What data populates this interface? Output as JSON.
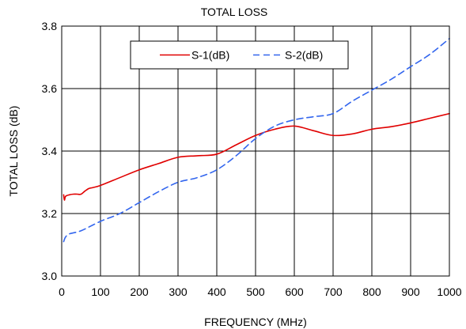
{
  "chart_data": {
    "type": "line",
    "title": "TOTAL LOSS",
    "xlabel": "FREQUENCY (MHz)",
    "ylabel": "TOTAL LOSS (dB)",
    "xlim": [
      0,
      1000
    ],
    "ylim": [
      3.0,
      3.8
    ],
    "x_ticks": [
      0,
      100,
      200,
      300,
      400,
      500,
      600,
      700,
      800,
      900,
      1000
    ],
    "y_ticks": [
      3.0,
      3.2,
      3.4,
      3.6,
      3.8
    ],
    "x_tick_labels": [
      "0",
      "100",
      "200",
      "300",
      "400",
      "500",
      "600",
      "700",
      "800",
      "900",
      "1000"
    ],
    "y_tick_labels": [
      "3.0",
      "3.2",
      "3.4",
      "3.6",
      "3.8"
    ],
    "grid": true,
    "legend": "top-center",
    "series": [
      {
        "name": "S-1(dB)",
        "color": "#e00000",
        "line_style": "solid",
        "points": [
          [
            5,
            3.26
          ],
          [
            7,
            3.243
          ],
          [
            10,
            3.255
          ],
          [
            20,
            3.26
          ],
          [
            30,
            3.262
          ],
          [
            40,
            3.262
          ],
          [
            50,
            3.262
          ],
          [
            60,
            3.272
          ],
          [
            70,
            3.28
          ],
          [
            80,
            3.283
          ],
          [
            100,
            3.29
          ],
          [
            150,
            3.315
          ],
          [
            200,
            3.34
          ],
          [
            250,
            3.36
          ],
          [
            300,
            3.38
          ],
          [
            350,
            3.385
          ],
          [
            400,
            3.39
          ],
          [
            450,
            3.42
          ],
          [
            500,
            3.45
          ],
          [
            550,
            3.47
          ],
          [
            600,
            3.48
          ],
          [
            650,
            3.465
          ],
          [
            700,
            3.45
          ],
          [
            750,
            3.455
          ],
          [
            800,
            3.47
          ],
          [
            850,
            3.478
          ],
          [
            900,
            3.49
          ],
          [
            950,
            3.505
          ],
          [
            1000,
            3.52
          ]
        ]
      },
      {
        "name": "S-2(dB)",
        "color": "#3366ee",
        "line_style": "dashed",
        "points": [
          [
            5,
            3.11
          ],
          [
            10,
            3.125
          ],
          [
            20,
            3.135
          ],
          [
            50,
            3.145
          ],
          [
            100,
            3.175
          ],
          [
            150,
            3.2
          ],
          [
            200,
            3.235
          ],
          [
            250,
            3.27
          ],
          [
            300,
            3.3
          ],
          [
            350,
            3.315
          ],
          [
            400,
            3.34
          ],
          [
            450,
            3.385
          ],
          [
            500,
            3.44
          ],
          [
            550,
            3.48
          ],
          [
            600,
            3.5
          ],
          [
            650,
            3.51
          ],
          [
            700,
            3.52
          ],
          [
            750,
            3.56
          ],
          [
            800,
            3.595
          ],
          [
            850,
            3.63
          ],
          [
            900,
            3.67
          ],
          [
            950,
            3.71
          ],
          [
            1000,
            3.76
          ]
        ]
      }
    ]
  }
}
